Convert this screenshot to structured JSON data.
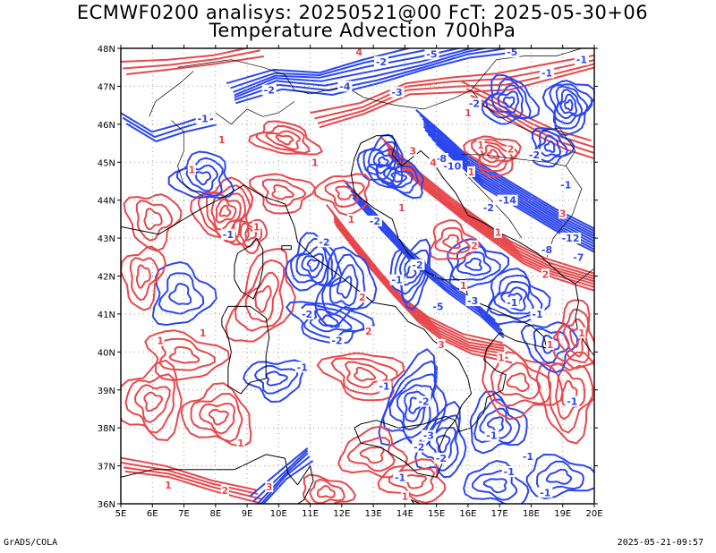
{
  "title": {
    "line1": "ECMWF0200 analisys: 20250521@00 FcT: 2025-05-30+06",
    "line2": "Temperature Advection 700hPa"
  },
  "footer": {
    "left": "GrADS/COLA",
    "right": "2025-05-21-09:57"
  },
  "map": {
    "lon_ticks": [
      "5E",
      "6E",
      "7E",
      "8E",
      "9E",
      "10E",
      "11E",
      "12E",
      "13E",
      "14E",
      "15E",
      "16E",
      "17E",
      "18E",
      "19E",
      "20E"
    ],
    "lat_ticks": [
      "36N",
      "37N",
      "38N",
      "39N",
      "40N",
      "41N",
      "42N",
      "43N",
      "44N",
      "45N",
      "46N",
      "47N",
      "48N"
    ],
    "lon_range": [
      5,
      20
    ],
    "lat_range": [
      36,
      48
    ],
    "grid": true,
    "colors": {
      "positive_contour": "#e8474b",
      "negative_contour": "#2c46ee",
      "coastline": "#000000",
      "grid": "#999999"
    },
    "contour_labels": [
      {
        "text": "-2",
        "lon": 13.25,
        "lat": 47.65,
        "sign": "neg"
      },
      {
        "text": "-5",
        "lon": 14.85,
        "lat": 47.85,
        "sign": "neg"
      },
      {
        "text": "-5",
        "lon": 17.4,
        "lat": 47.9,
        "sign": "neg"
      },
      {
        "text": "-4",
        "lon": 12.1,
        "lat": 47.0,
        "sign": "neg"
      },
      {
        "text": "-3",
        "lon": 13.75,
        "lat": 46.85,
        "sign": "neg"
      },
      {
        "text": "-2",
        "lon": 9.7,
        "lat": 46.9,
        "sign": "neg"
      },
      {
        "text": "-1",
        "lon": 7.6,
        "lat": 46.15,
        "sign": "neg"
      },
      {
        "text": "-1",
        "lon": 18.5,
        "lat": 47.35,
        "sign": "neg"
      },
      {
        "text": "-1",
        "lon": 19.6,
        "lat": 47.7,
        "sign": "neg"
      },
      {
        "text": "-1",
        "lon": 19.1,
        "lat": 44.4,
        "sign": "neg"
      },
      {
        "text": "-2",
        "lon": 16.2,
        "lat": 46.55,
        "sign": "neg"
      },
      {
        "text": "-2",
        "lon": 18.1,
        "lat": 45.2,
        "sign": "neg"
      },
      {
        "text": "-2",
        "lon": 16.65,
        "lat": 43.8,
        "sign": "neg"
      },
      {
        "text": "-2",
        "lon": 13.05,
        "lat": 43.45,
        "sign": "neg"
      },
      {
        "text": "-10",
        "lon": 15.5,
        "lat": 44.9,
        "sign": "neg"
      },
      {
        "text": "-8",
        "lon": 15.15,
        "lat": 45.1,
        "sign": "neg"
      },
      {
        "text": "-14",
        "lon": 17.25,
        "lat": 44.0,
        "sign": "neg"
      },
      {
        "text": "-12",
        "lon": 19.25,
        "lat": 43.0,
        "sign": "neg"
      },
      {
        "text": "-8",
        "lon": 18.5,
        "lat": 42.7,
        "sign": "neg"
      },
      {
        "text": "-7",
        "lon": 19.5,
        "lat": 42.5,
        "sign": "neg"
      },
      {
        "text": "-2",
        "lon": 14.4,
        "lat": 42.3,
        "sign": "neg"
      },
      {
        "text": "-2",
        "lon": 11.45,
        "lat": 42.9,
        "sign": "neg"
      },
      {
        "text": "-1",
        "lon": 8.4,
        "lat": 43.1,
        "sign": "neg"
      },
      {
        "text": "-1",
        "lon": 13.75,
        "lat": 41.9,
        "sign": "neg"
      },
      {
        "text": "-5",
        "lon": 15.05,
        "lat": 41.2,
        "sign": "neg"
      },
      {
        "text": "-2",
        "lon": 10.9,
        "lat": 41.0,
        "sign": "neg"
      },
      {
        "text": "-2",
        "lon": 11.85,
        "lat": 40.3,
        "sign": "neg"
      },
      {
        "text": "-1",
        "lon": 10.75,
        "lat": 39.6,
        "sign": "neg"
      },
      {
        "text": "-1",
        "lon": 17.4,
        "lat": 41.3,
        "sign": "neg"
      },
      {
        "text": "-3",
        "lon": 16.15,
        "lat": 41.35,
        "sign": "neg"
      },
      {
        "text": "-1",
        "lon": 18.2,
        "lat": 41.0,
        "sign": "neg"
      },
      {
        "text": "-1",
        "lon": 13.35,
        "lat": 39.1,
        "sign": "neg"
      },
      {
        "text": "-2",
        "lon": 14.6,
        "lat": 38.7,
        "sign": "neg"
      },
      {
        "text": "-3",
        "lon": 14.75,
        "lat": 37.8,
        "sign": "neg"
      },
      {
        "text": "-2",
        "lon": 14.45,
        "lat": 37.5,
        "sign": "neg"
      },
      {
        "text": "-1",
        "lon": 16.75,
        "lat": 37.8,
        "sign": "neg"
      },
      {
        "text": "-2",
        "lon": 15.15,
        "lat": 37.2,
        "sign": "neg"
      },
      {
        "text": "-1",
        "lon": 13.85,
        "lat": 36.7,
        "sign": "neg"
      },
      {
        "text": "-1",
        "lon": 17.3,
        "lat": 36.85,
        "sign": "neg"
      },
      {
        "text": "-1",
        "lon": 17.9,
        "lat": 37.25,
        "sign": "neg"
      },
      {
        "text": "-1",
        "lon": 18.45,
        "lat": 36.3,
        "sign": "neg"
      },
      {
        "text": "-1",
        "lon": 19.3,
        "lat": 38.7,
        "sign": "neg"
      },
      {
        "text": "4",
        "lon": 12.55,
        "lat": 47.9,
        "sign": "pos"
      },
      {
        "text": "3",
        "lon": 14.25,
        "lat": 45.3,
        "sign": "pos"
      },
      {
        "text": "4",
        "lon": 14.9,
        "lat": 45.0,
        "sign": "pos"
      },
      {
        "text": "3",
        "lon": 19.0,
        "lat": 43.65,
        "sign": "pos"
      },
      {
        "text": "2",
        "lon": 18.45,
        "lat": 42.05,
        "sign": "pos"
      },
      {
        "text": "1",
        "lon": 16.1,
        "lat": 44.75,
        "sign": "pos"
      },
      {
        "text": "1",
        "lon": 16.4,
        "lat": 45.45,
        "sign": "pos"
      },
      {
        "text": "2",
        "lon": 17.35,
        "lat": 45.35,
        "sign": "pos"
      },
      {
        "text": "1",
        "lon": 16.0,
        "lat": 46.3,
        "sign": "pos"
      },
      {
        "text": "1",
        "lon": 8.2,
        "lat": 45.6,
        "sign": "pos"
      },
      {
        "text": "1",
        "lon": 11.15,
        "lat": 45.0,
        "sign": "pos"
      },
      {
        "text": "1",
        "lon": 7.25,
        "lat": 44.8,
        "sign": "pos"
      },
      {
        "text": "1",
        "lon": 9.3,
        "lat": 43.3,
        "sign": "pos"
      },
      {
        "text": "2",
        "lon": 16.2,
        "lat": 42.8,
        "sign": "pos"
      },
      {
        "text": "1",
        "lon": 13.9,
        "lat": 43.8,
        "sign": "pos"
      },
      {
        "text": "1",
        "lon": 12.3,
        "lat": 43.5,
        "sign": "pos"
      },
      {
        "text": "1",
        "lon": 16.95,
        "lat": 43.15,
        "sign": "pos"
      },
      {
        "text": "2",
        "lon": 12.65,
        "lat": 41.45,
        "sign": "pos"
      },
      {
        "text": "2",
        "lon": 12.85,
        "lat": 40.55,
        "sign": "pos"
      },
      {
        "text": "3",
        "lon": 15.15,
        "lat": 40.2,
        "sign": "pos"
      },
      {
        "text": "1",
        "lon": 15.85,
        "lat": 41.75,
        "sign": "pos"
      },
      {
        "text": "1",
        "lon": 19.6,
        "lat": 40.5,
        "sign": "pos"
      },
      {
        "text": "1",
        "lon": 18.6,
        "lat": 40.2,
        "sign": "pos"
      },
      {
        "text": "1",
        "lon": 17.05,
        "lat": 39.85,
        "sign": "pos"
      },
      {
        "text": "1",
        "lon": 7.6,
        "lat": 40.5,
        "sign": "pos"
      },
      {
        "text": "1",
        "lon": 6.25,
        "lat": 40.3,
        "sign": "pos"
      },
      {
        "text": "1",
        "lon": 8.8,
        "lat": 37.6,
        "sign": "pos"
      },
      {
        "text": "1",
        "lon": 6.5,
        "lat": 36.5,
        "sign": "pos"
      },
      {
        "text": "2",
        "lon": 8.3,
        "lat": 36.35,
        "sign": "pos"
      },
      {
        "text": "3",
        "lon": 9.7,
        "lat": 36.45,
        "sign": "pos"
      },
      {
        "text": "1",
        "lon": 14.0,
        "lat": 36.2,
        "sign": "pos"
      }
    ]
  }
}
